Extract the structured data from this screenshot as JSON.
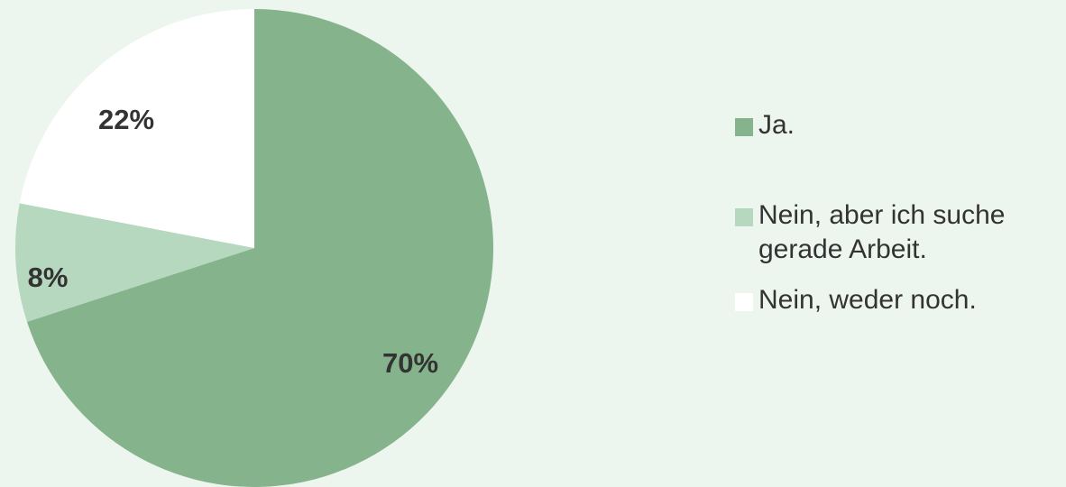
{
  "chart_data": {
    "type": "pie",
    "title": "",
    "slices": [
      {
        "label": "Ja.",
        "value": 70,
        "display": "70%",
        "color": "#85b38c"
      },
      {
        "label": "Nein, aber ich suche gerade Arbeit.",
        "value": 8,
        "display": "8%",
        "color": "#b5d8be"
      },
      {
        "label": "Nein, weder noch.",
        "value": 22,
        "display": "22%",
        "color": "#ffffff"
      }
    ],
    "legend_placement": "right",
    "start": "12 o'clock",
    "direction": "clockwise"
  }
}
